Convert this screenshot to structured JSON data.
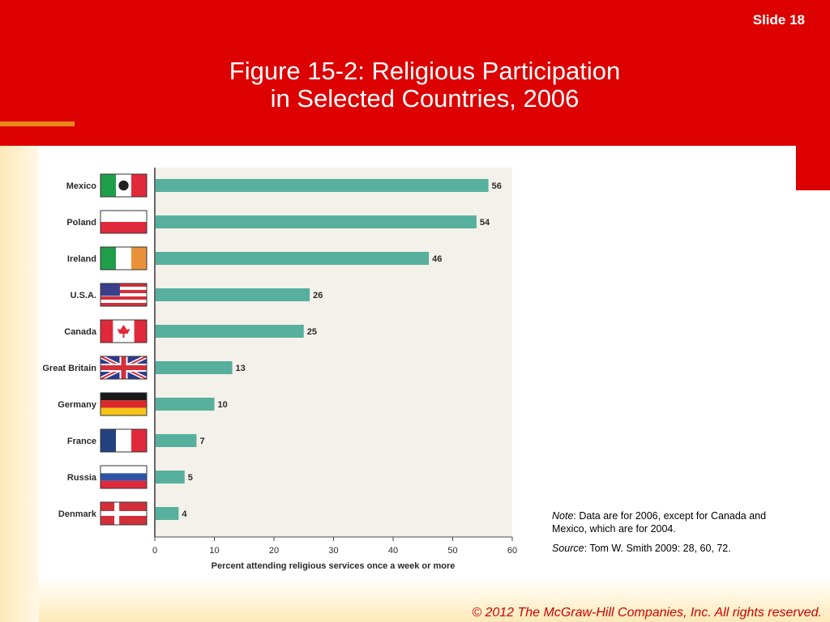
{
  "slide": {
    "number_label": "Slide 18",
    "title_line1": "Figure 15-2: Religious Participation",
    "title_line2": "in Selected Countries, 2006",
    "copyright": "© 2012 The McGraw-Hill Companies, Inc. All rights reserved."
  },
  "note": {
    "note_label": "Note",
    "note_text": ": Data are for 2006, except for Canada and Mexico, which are for 2004.",
    "source_label": "Source",
    "source_text": ": Tom W. Smith 2009: 28, 60, 72."
  },
  "colors": {
    "header_red": "#dc0000",
    "bar": "#57b09e",
    "chart_bg": "#f4f1ea"
  },
  "chart_data": {
    "type": "bar",
    "orientation": "horizontal",
    "categories": [
      "Mexico",
      "Poland",
      "Ireland",
      "U.S.A.",
      "Canada",
      "Great Britain",
      "Germany",
      "France",
      "Russia",
      "Denmark"
    ],
    "flags": [
      "mexico-flag-icon",
      "poland-flag-icon",
      "ireland-flag-icon",
      "usa-flag-icon",
      "canada-flag-icon",
      "great-britain-flag-icon",
      "germany-flag-icon",
      "france-flag-icon",
      "russia-flag-icon",
      "denmark-flag-icon"
    ],
    "values": [
      56,
      54,
      46,
      26,
      25,
      13,
      10,
      7,
      5,
      4
    ],
    "data_labels": [
      "56",
      "54",
      "46",
      "26",
      "25",
      "13",
      "10",
      "7",
      "5",
      "4"
    ],
    "xlim": [
      0,
      60
    ],
    "xticks": [
      "0",
      "10",
      "20",
      "30",
      "40",
      "50",
      "60"
    ],
    "xlabel": "Percent attending religious services once a week or more",
    "ylabel": "",
    "title": "",
    "grid": false
  }
}
